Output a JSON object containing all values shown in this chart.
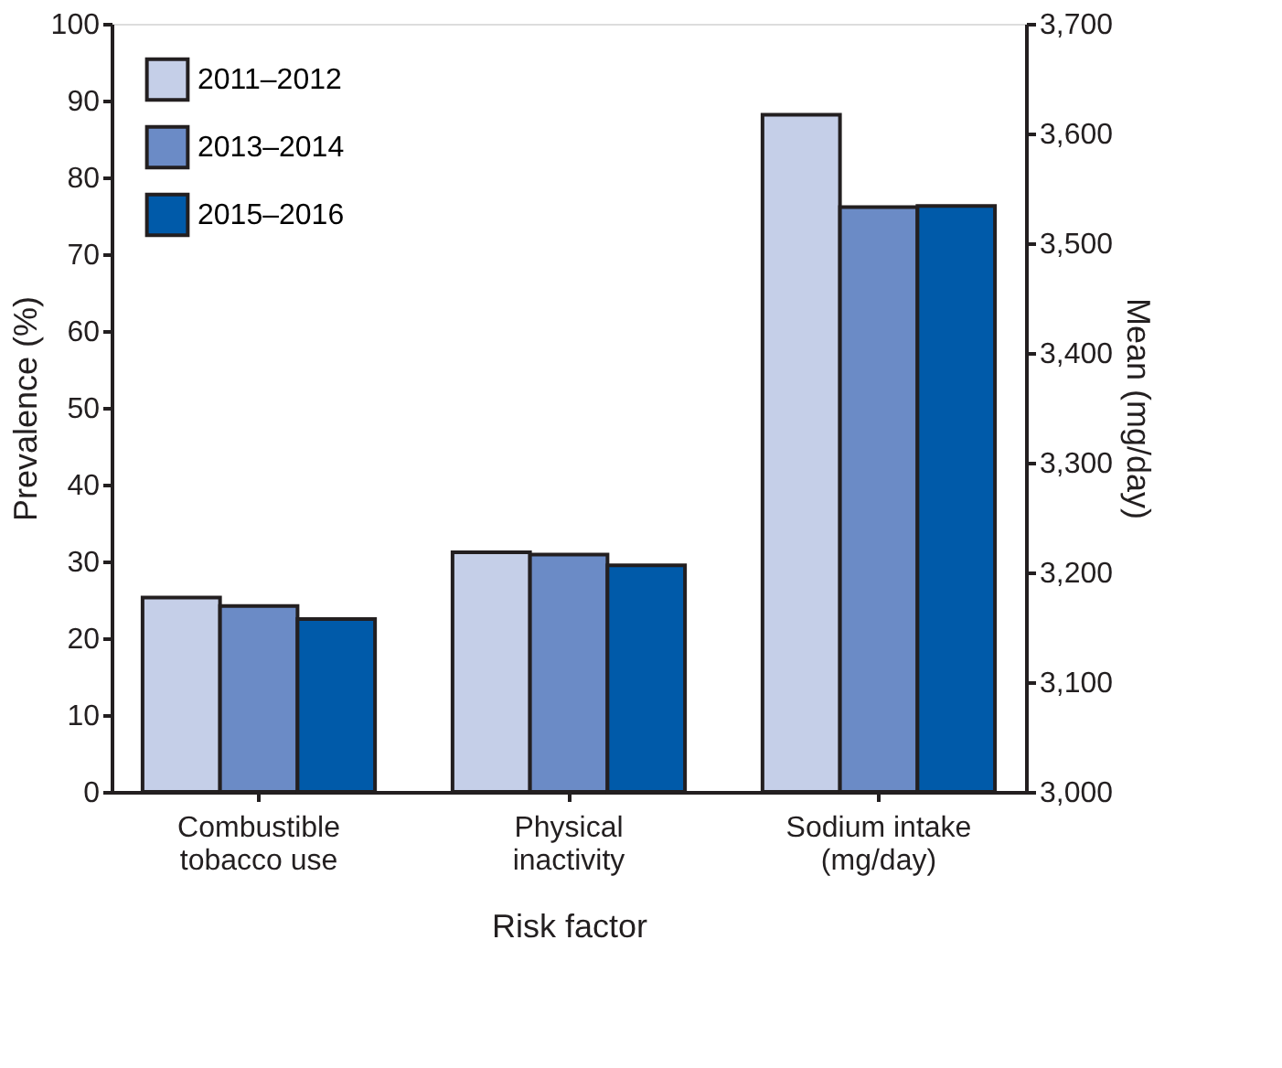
{
  "chart_data": {
    "type": "bar",
    "xlabel": "Risk factor",
    "ylabel": "Prevalence (%)",
    "y2label": "Mean (mg/day)",
    "categories": [
      "Combustible\ntobacco use",
      "Physical\ninactivity",
      "Sodium intake\n(mg/day)"
    ],
    "series": [
      {
        "name": "2011–2012",
        "color": "#c5cfe8",
        "values": [
          25.3,
          31.2,
          null
        ]
      },
      {
        "name": "2013–2014",
        "color": "#6b8bc6",
        "values": [
          24.2,
          30.9,
          null
        ]
      },
      {
        "name": "2015–2016",
        "color": "#005aa9",
        "values": [
          22.5,
          29.5,
          null
        ]
      },
      {
        "color": "#c5cfe8",
        "axis": "y2",
        "values": [
          null,
          null,
          3617
        ]
      },
      {
        "color": "#6b8bc6",
        "axis": "y2",
        "values": [
          null,
          null,
          3533
        ]
      },
      {
        "color": "#005aa9",
        "axis": "y2",
        "values": [
          null,
          null,
          3534
        ]
      }
    ],
    "ylim": [
      0,
      100
    ],
    "yticks": [
      0,
      10,
      20,
      30,
      40,
      50,
      60,
      70,
      80,
      90,
      100
    ],
    "y2lim": [
      3000,
      3700
    ],
    "y2ticks": [
      {
        "value": 3000,
        "label": "3,000"
      },
      {
        "value": 3100,
        "label": "3,100"
      },
      {
        "value": 3200,
        "label": "3,200"
      },
      {
        "value": 3300,
        "label": "3,300"
      },
      {
        "value": 3400,
        "label": "3,400"
      },
      {
        "value": 3500,
        "label": "3,500"
      },
      {
        "value": 3600,
        "label": "3,600"
      },
      {
        "value": 3700,
        "label": "3,700"
      }
    ],
    "grid": false,
    "legend": "top left"
  }
}
